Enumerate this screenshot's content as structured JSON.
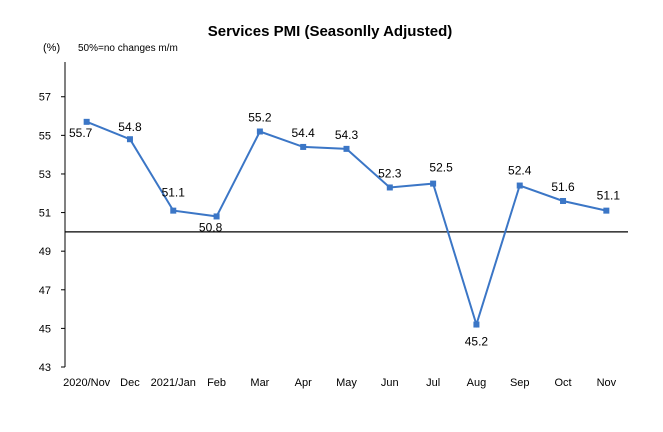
{
  "chart_data": {
    "type": "line",
    "title": "Services PMI (Seasonlly Adjusted)",
    "unit_label": "(%)",
    "note": "50%=no changes  m/m",
    "categories": [
      "2020/Nov",
      "Dec",
      "2021/Jan",
      "Feb",
      "Mar",
      "Apr",
      "May",
      "Jun",
      "Jul",
      "Aug",
      "Sep",
      "Oct",
      "Nov"
    ],
    "series": [
      {
        "values": [
          55.7,
          54.8,
          51.1,
          50.8,
          55.2,
          54.4,
          54.3,
          52.3,
          52.5,
          45.2,
          52.4,
          51.6,
          51.1
        ]
      }
    ],
    "data_labels": [
      "55.7",
      "54.8",
      "51.1",
      "50.8",
      "55.2",
      "54.4",
      "54.3",
      "52.3",
      "52.5",
      "45.2",
      "52.4",
      "51.6",
      "51.1"
    ],
    "yticks": [
      "43",
      "45",
      "47",
      "49",
      "51",
      "53",
      "55",
      "57"
    ],
    "ylim": [
      43,
      58.8
    ],
    "baseline": 50,
    "line_color": "#3b76c6",
    "grid": false,
    "legend": "none"
  }
}
